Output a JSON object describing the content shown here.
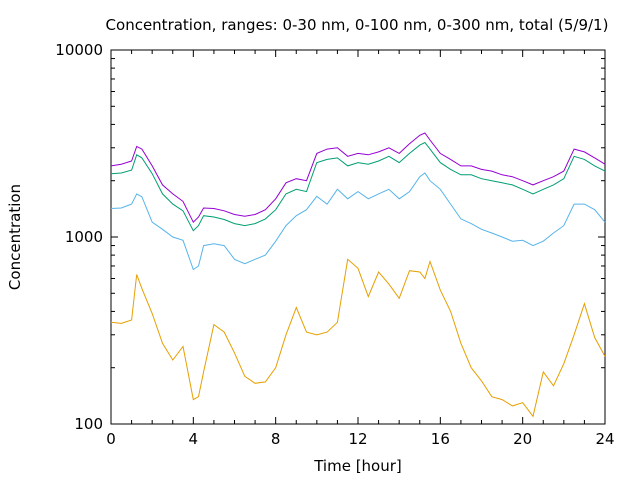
{
  "chart_data": {
    "type": "line",
    "title": "Concentration, ranges: 0-30 nm, 0-100 nm, 0-300 nm, total (5/9/1)",
    "xlabel": "Time [hour]",
    "ylabel": "Concentration",
    "xlim": [
      0,
      24
    ],
    "ylim": [
      100,
      10000
    ],
    "yscale": "log",
    "grid": false,
    "legend": "none",
    "xticks": [
      "0",
      "4",
      "8",
      "12",
      "16",
      "20",
      "24"
    ],
    "yticks": [
      "100",
      "1000",
      "10000"
    ],
    "x": [
      0,
      0.5,
      1,
      1.25,
      1.5,
      2,
      2.5,
      3,
      3.5,
      4,
      4.25,
      4.5,
      5,
      5.5,
      6,
      6.5,
      7,
      7.5,
      8,
      8.5,
      9,
      9.5,
      10,
      10.5,
      11,
      11.5,
      12,
      12.5,
      13,
      13.5,
      14,
      14.5,
      15,
      15.25,
      15.5,
      16,
      16.5,
      17,
      17.5,
      18,
      18.5,
      19,
      19.5,
      20,
      20.5,
      21,
      21.5,
      22,
      22.5,
      23,
      23.5,
      24
    ],
    "series": [
      {
        "color": "#e69f00",
        "values": [
          350,
          345,
          360,
          630,
          530,
          390,
          270,
          220,
          260,
          135,
          140,
          190,
          340,
          310,
          240,
          180,
          165,
          168,
          200,
          300,
          420,
          310,
          300,
          310,
          350,
          760,
          680,
          480,
          650,
          560,
          470,
          660,
          650,
          600,
          740,
          520,
          400,
          270,
          200,
          170,
          140,
          135,
          125,
          130,
          110,
          190,
          160,
          210,
          300,
          440,
          290,
          230
        ]
      },
      {
        "color": "#56b4e9",
        "values": [
          1420,
          1430,
          1500,
          1700,
          1640,
          1200,
          1100,
          1000,
          960,
          670,
          700,
          900,
          920,
          900,
          760,
          720,
          760,
          800,
          950,
          1150,
          1300,
          1400,
          1650,
          1500,
          1800,
          1600,
          1750,
          1600,
          1700,
          1800,
          1600,
          1750,
          2100,
          2200,
          2000,
          1800,
          1500,
          1250,
          1180,
          1100,
          1050,
          1000,
          950,
          960,
          900,
          950,
          1050,
          1150,
          1500,
          1500,
          1400,
          1200
        ]
      },
      {
        "color": "#009e73",
        "values": [
          2180,
          2200,
          2280,
          2750,
          2650,
          2180,
          1700,
          1500,
          1380,
          1080,
          1150,
          1300,
          1280,
          1240,
          1180,
          1150,
          1180,
          1250,
          1400,
          1700,
          1800,
          1750,
          2500,
          2600,
          2650,
          2400,
          2500,
          2450,
          2550,
          2700,
          2500,
          2800,
          3100,
          3200,
          2950,
          2500,
          2300,
          2150,
          2150,
          2050,
          2000,
          1950,
          1900,
          1800,
          1700,
          1800,
          1900,
          2050,
          2700,
          2600,
          2400,
          2250
        ]
      },
      {
        "color": "#9400d3",
        "values": [
          2400,
          2450,
          2550,
          3050,
          2950,
          2400,
          1900,
          1700,
          1550,
          1200,
          1280,
          1430,
          1420,
          1380,
          1320,
          1290,
          1320,
          1400,
          1600,
          1950,
          2050,
          2000,
          2800,
          2950,
          3000,
          2700,
          2800,
          2750,
          2850,
          3000,
          2800,
          3150,
          3500,
          3600,
          3300,
          2800,
          2600,
          2400,
          2400,
          2300,
          2250,
          2150,
          2100,
          2000,
          1900,
          2000,
          2100,
          2250,
          2950,
          2850,
          2650,
          2450
        ]
      }
    ]
  }
}
